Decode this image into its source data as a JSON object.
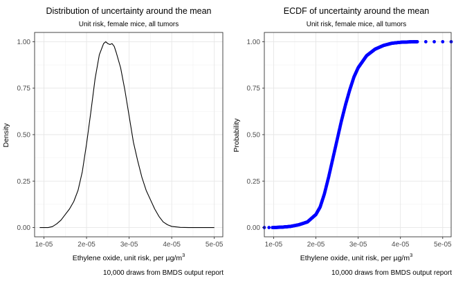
{
  "chart_data": [
    {
      "type": "line",
      "title": "Distribution of uncertainty around the mean",
      "subtitle": "Unit risk, female mice, all tumors",
      "xlabel": "Ethylene oxide, unit risk, per µg/m",
      "xlabel_superscript": "3",
      "ylabel": "Density",
      "caption": "10,000 draws from BMDS output report",
      "xlim": [
        7.8e-06,
        5.2e-05
      ],
      "ylim": [
        -0.05,
        1.05
      ],
      "x_ticks": [
        1e-05,
        2e-05,
        3e-05,
        4e-05,
        5e-05
      ],
      "x_tick_labels": [
        "1e-05",
        "2e-05",
        "3e-05",
        "4e-05",
        "5e-05"
      ],
      "y_ticks": [
        0,
        0.25,
        0.5,
        0.75,
        1
      ],
      "y_tick_labels": [
        "0.00",
        "0.25",
        "0.50",
        "0.75",
        "1.00"
      ],
      "grid": true,
      "series": [
        {
          "color": "#000000",
          "x": [
            9e-06,
            1.1e-05,
            1.2e-05,
            1.3e-05,
            1.4e-05,
            1.5e-05,
            1.6e-05,
            1.7e-05,
            1.8e-05,
            1.9e-05,
            2e-05,
            2.1e-05,
            2.2e-05,
            2.3e-05,
            2.4e-05,
            2.45e-05,
            2.5e-05,
            2.55e-05,
            2.6e-05,
            2.65e-05,
            2.7e-05,
            2.8e-05,
            2.9e-05,
            3e-05,
            3.1e-05,
            3.2e-05,
            3.3e-05,
            3.4e-05,
            3.5e-05,
            3.6e-05,
            3.7e-05,
            3.8e-05,
            3.9e-05,
            4e-05,
            4.2e-05,
            4.4e-05,
            4.6e-05,
            5e-05
          ],
          "y": [
            0.0,
            0.0,
            0.005,
            0.02,
            0.04,
            0.07,
            0.1,
            0.14,
            0.2,
            0.3,
            0.45,
            0.62,
            0.8,
            0.93,
            0.99,
            1.0,
            0.99,
            0.985,
            0.99,
            0.975,
            0.94,
            0.86,
            0.74,
            0.6,
            0.46,
            0.36,
            0.27,
            0.2,
            0.15,
            0.1,
            0.06,
            0.03,
            0.015,
            0.006,
            0.001,
            0.0,
            0.0,
            0.0
          ]
        }
      ]
    },
    {
      "type": "scatter",
      "title": "ECDF of uncertainty around the mean",
      "subtitle": "Unit risk, female mice, all tumors",
      "xlabel": "Ethylene oxide, unit risk, per µg/m",
      "xlabel_superscript": "3",
      "ylabel": "Probability",
      "caption": "10,000 draws from BMDS output report",
      "xlim": [
        7.8e-06,
        5.2e-05
      ],
      "ylim": [
        -0.05,
        1.05
      ],
      "x_ticks": [
        1e-05,
        2e-05,
        3e-05,
        4e-05,
        5e-05
      ],
      "x_tick_labels": [
        "1e-05",
        "2e-05",
        "3e-05",
        "4e-05",
        "5e-05"
      ],
      "y_ticks": [
        0,
        0.25,
        0.5,
        0.75,
        1
      ],
      "y_tick_labels": [
        "0.00",
        "0.25",
        "0.50",
        "0.75",
        "1.00"
      ],
      "grid": true,
      "series": [
        {
          "color": "#0000ff",
          "cdf_x": [
            1e-05,
            1.2e-05,
            1.4e-05,
            1.6e-05,
            1.8e-05,
            2e-05,
            2.1e-05,
            2.2e-05,
            2.3e-05,
            2.4e-05,
            2.5e-05,
            2.6e-05,
            2.7e-05,
            2.8e-05,
            2.9e-05,
            3e-05,
            3.2e-05,
            3.4e-05,
            3.6e-05,
            3.8e-05,
            4e-05,
            4.2e-05,
            4.4e-05
          ],
          "cdf_y": [
            0.0,
            0.002,
            0.006,
            0.015,
            0.03,
            0.07,
            0.11,
            0.18,
            0.27,
            0.37,
            0.47,
            0.57,
            0.66,
            0.74,
            0.81,
            0.86,
            0.925,
            0.96,
            0.98,
            0.992,
            0.997,
            0.999,
            1.0
          ],
          "outliers_low": [
            [
              7.8e-06,
              0.0
            ],
            [
              8.9e-06,
              0.0
            ],
            [
              9.7e-06,
              0.0
            ]
          ],
          "outliers_high": [
            [
              4.6e-05,
              1.0
            ],
            [
              4.8e-05,
              1.0
            ],
            [
              5e-05,
              1.0
            ],
            [
              5.2e-05,
              1.0
            ]
          ]
        }
      ]
    }
  ]
}
